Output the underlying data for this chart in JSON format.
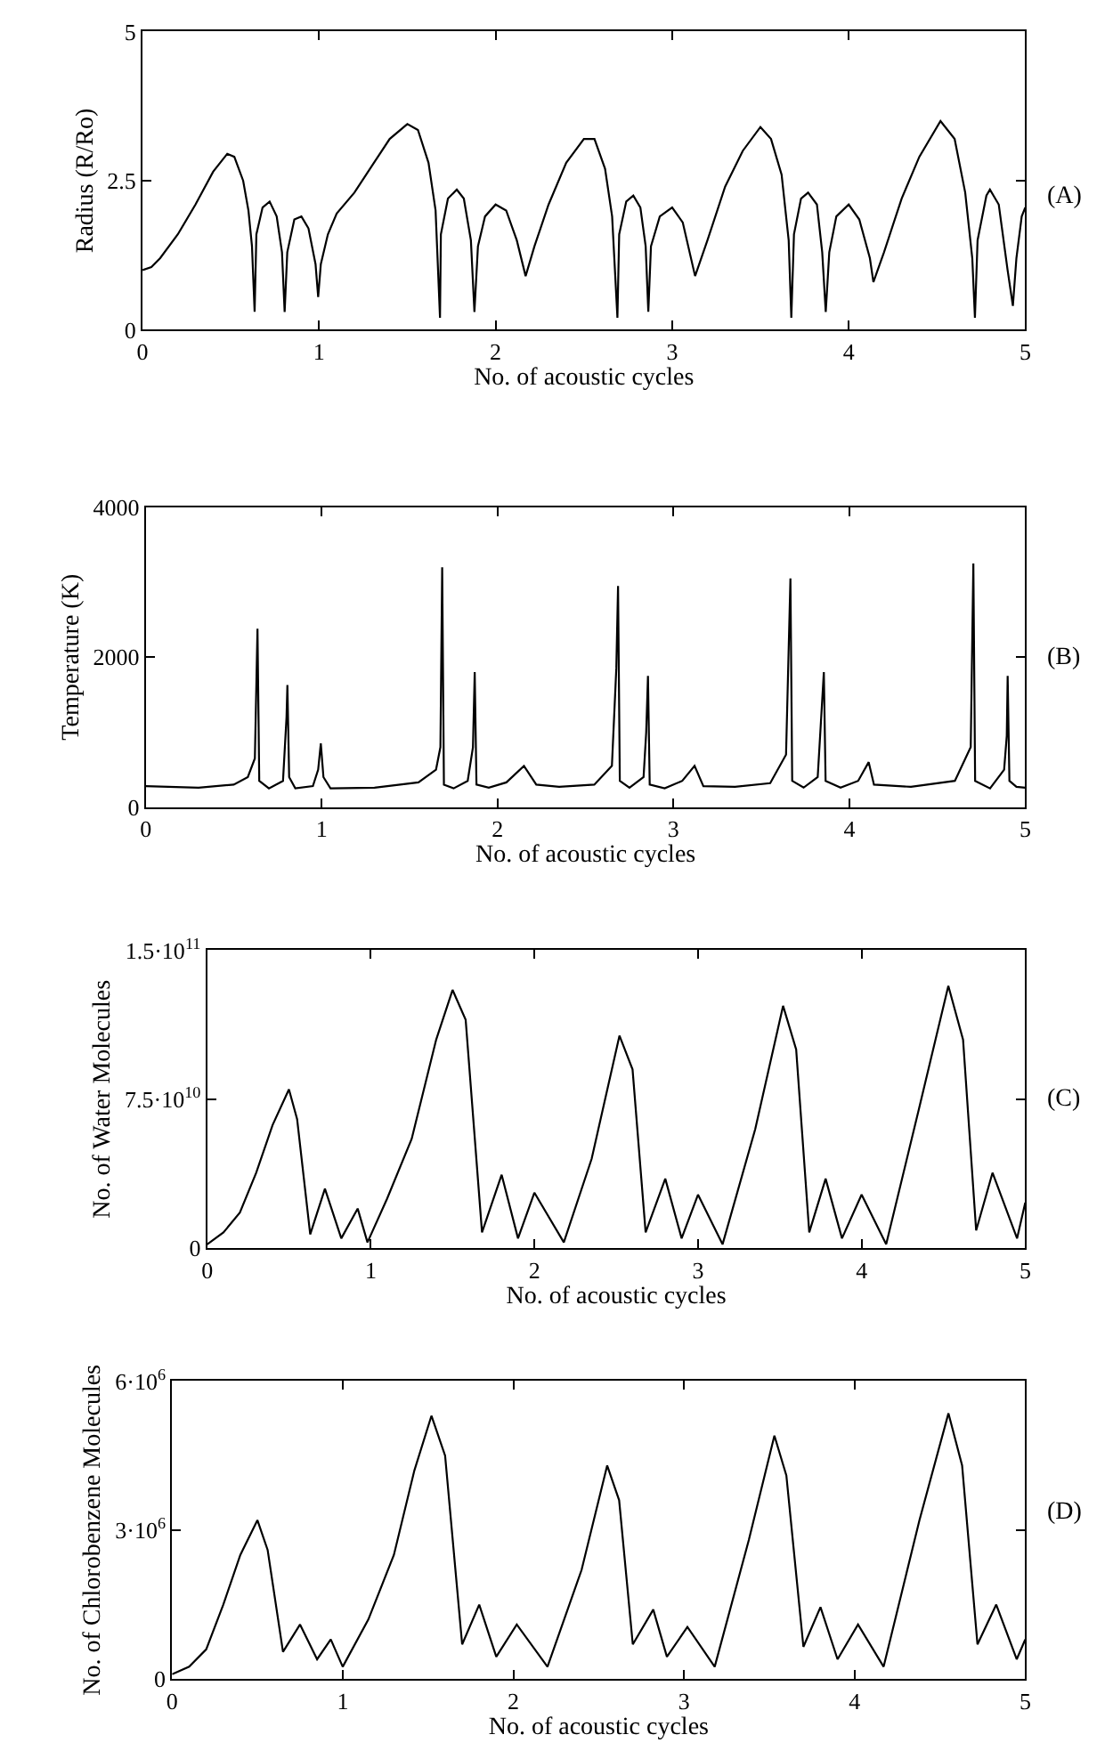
{
  "chart_data": [
    {
      "type": "line",
      "xlabel": "No. of acoustic cycles",
      "ylabel": "Radius (R/Ro)",
      "annotations": [
        "(A)"
      ],
      "xlim": [
        0,
        5
      ],
      "ylim": [
        0,
        5
      ],
      "xticks": [
        0,
        1,
        2,
        3,
        4,
        5
      ],
      "yticks": [
        0,
        2.5,
        5
      ],
      "x": [
        0,
        0.05,
        0.1,
        0.2,
        0.3,
        0.4,
        0.48,
        0.52,
        0.57,
        0.6,
        0.62,
        0.635,
        0.645,
        0.68,
        0.72,
        0.76,
        0.79,
        0.805,
        0.82,
        0.86,
        0.9,
        0.94,
        0.98,
        0.995,
        1.01,
        1.05,
        1.1,
        1.2,
        1.3,
        1.4,
        1.5,
        1.56,
        1.62,
        1.66,
        1.685,
        1.69,
        1.73,
        1.78,
        1.82,
        1.86,
        1.88,
        1.9,
        1.94,
        2.0,
        2.06,
        2.12,
        2.17,
        2.22,
        2.3,
        2.4,
        2.5,
        2.56,
        2.62,
        2.66,
        2.69,
        2.7,
        2.74,
        2.78,
        2.82,
        2.85,
        2.865,
        2.88,
        2.93,
        3.0,
        3.06,
        3.13,
        3.2,
        3.3,
        3.4,
        3.5,
        3.56,
        3.62,
        3.66,
        3.675,
        3.69,
        3.73,
        3.77,
        3.82,
        3.85,
        3.87,
        3.89,
        3.93,
        4.0,
        4.06,
        4.12,
        4.14,
        4.2,
        4.3,
        4.4,
        4.52,
        4.6,
        4.66,
        4.7,
        4.715,
        4.73,
        4.78,
        4.8,
        4.85,
        4.9,
        4.93,
        4.95,
        4.98,
        5.0
      ],
      "series": [
        {
          "color": "#000000",
          "values": [
            1.0,
            1.05,
            1.2,
            1.6,
            2.1,
            2.65,
            2.95,
            2.9,
            2.5,
            2.0,
            1.4,
            0.3,
            1.6,
            2.05,
            2.15,
            1.9,
            1.3,
            0.3,
            1.3,
            1.85,
            1.9,
            1.7,
            1.1,
            0.55,
            1.1,
            1.6,
            1.95,
            2.3,
            2.75,
            3.2,
            3.45,
            3.35,
            2.8,
            2.0,
            0.2,
            1.6,
            2.2,
            2.35,
            2.2,
            1.5,
            0.3,
            1.4,
            1.9,
            2.1,
            2.0,
            1.5,
            0.9,
            1.4,
            2.1,
            2.8,
            3.2,
            3.2,
            2.7,
            1.9,
            0.2,
            1.6,
            2.15,
            2.25,
            2.05,
            1.4,
            0.3,
            1.4,
            1.9,
            2.05,
            1.8,
            0.9,
            1.5,
            2.4,
            3.0,
            3.4,
            3.2,
            2.6,
            1.5,
            0.2,
            1.6,
            2.2,
            2.3,
            2.1,
            1.3,
            0.3,
            1.3,
            1.9,
            2.1,
            1.85,
            1.2,
            0.8,
            1.3,
            2.2,
            2.9,
            3.5,
            3.2,
            2.3,
            1.2,
            0.2,
            1.5,
            2.25,
            2.35,
            2.1,
            1.0,
            0.4,
            1.2,
            1.9,
            2.05
          ]
        }
      ]
    },
    {
      "type": "line",
      "xlabel": "No. of acoustic cycles",
      "ylabel": "Temperature (K)",
      "annotations": [
        "(B)"
      ],
      "xlim": [
        0,
        5
      ],
      "ylim": [
        0,
        4000
      ],
      "xticks": [
        0,
        1,
        2,
        3,
        4,
        5
      ],
      "yticks": [
        0,
        2000,
        4000
      ],
      "x": [
        0,
        0.3,
        0.5,
        0.58,
        0.62,
        0.635,
        0.645,
        0.7,
        0.78,
        0.8,
        0.805,
        0.815,
        0.85,
        0.95,
        0.98,
        0.995,
        1.01,
        1.05,
        1.3,
        1.55,
        1.65,
        1.675,
        1.685,
        1.695,
        1.75,
        1.83,
        1.86,
        1.87,
        1.88,
        1.95,
        2.05,
        2.15,
        2.22,
        2.35,
        2.55,
        2.65,
        2.675,
        2.685,
        2.695,
        2.75,
        2.83,
        2.845,
        2.855,
        2.865,
        2.95,
        3.05,
        3.12,
        3.17,
        3.35,
        3.55,
        3.64,
        3.665,
        3.675,
        3.74,
        3.82,
        3.855,
        3.865,
        3.95,
        4.05,
        4.11,
        4.14,
        4.35,
        4.6,
        4.69,
        4.705,
        4.715,
        4.8,
        4.88,
        4.895,
        4.9,
        4.91,
        4.95,
        5.0
      ],
      "series": [
        {
          "color": "#000000",
          "values": [
            280,
            260,
            300,
            400,
            650,
            2380,
            350,
            250,
            350,
            1200,
            1630,
            400,
            250,
            280,
            500,
            850,
            400,
            250,
            260,
            330,
            500,
            800,
            3200,
            300,
            250,
            350,
            800,
            1800,
            300,
            260,
            330,
            550,
            300,
            270,
            300,
            550,
            1850,
            2950,
            350,
            260,
            400,
            1000,
            1750,
            300,
            250,
            350,
            550,
            280,
            270,
            320,
            700,
            3050,
            350,
            260,
            400,
            1800,
            350,
            260,
            350,
            600,
            300,
            270,
            350,
            800,
            3250,
            350,
            250,
            500,
            950,
            1750,
            350,
            270,
            260
          ]
        }
      ]
    },
    {
      "type": "line",
      "xlabel": "No. of acoustic cycles",
      "ylabel": "No. of Water Molecules",
      "annotations": [
        "(C)"
      ],
      "xlim": [
        0,
        5
      ],
      "ylim": [
        0,
        150000000000.0
      ],
      "xticks": [
        0,
        1,
        2,
        3,
        4,
        5
      ],
      "yticks": [
        0,
        {
          "value": 75000000000.0,
          "label": "7.5·10$^{10}$"
        },
        {
          "value": 150000000000.0,
          "label": "1.5·10$^{11}$"
        }
      ],
      "x": [
        0,
        0.1,
        0.2,
        0.3,
        0.4,
        0.5,
        0.55,
        0.63,
        0.72,
        0.82,
        0.92,
        0.98,
        1.1,
        1.25,
        1.4,
        1.5,
        1.58,
        1.68,
        1.8,
        1.9,
        2.0,
        2.18,
        2.35,
        2.52,
        2.6,
        2.68,
        2.8,
        2.9,
        3.0,
        3.15,
        3.35,
        3.52,
        3.6,
        3.68,
        3.78,
        3.88,
        4.0,
        4.15,
        4.35,
        4.53,
        4.62,
        4.7,
        4.8,
        4.95,
        5.0
      ],
      "series": [
        {
          "color": "#000000",
          "values": [
            2000000000.0,
            8000000000.0,
            18000000000.0,
            38000000000.0,
            62000000000.0,
            80000000000.0,
            65000000000.0,
            7000000000.0,
            30000000000.0,
            5000000000.0,
            20000000000.0,
            3000000000.0,
            25000000000.0,
            55000000000.0,
            105000000000.0,
            130000000000.0,
            115000000000.0,
            8000000000.0,
            37000000000.0,
            5000000000.0,
            28000000000.0,
            3000000000.0,
            45000000000.0,
            107000000000.0,
            90000000000.0,
            8000000000.0,
            35000000000.0,
            5000000000.0,
            27000000000.0,
            2000000000.0,
            60000000000.0,
            122000000000.0,
            100000000000.0,
            8000000000.0,
            35000000000.0,
            5000000000.0,
            27000000000.0,
            2000000000.0,
            70000000000.0,
            132000000000.0,
            105000000000.0,
            9000000000.0,
            38000000000.0,
            5000000000.0,
            23000000000.0
          ]
        }
      ]
    },
    {
      "type": "line",
      "xlabel": "No. of acoustic cycles",
      "ylabel": "No. of Chlorobenzene Molecules",
      "annotations": [
        "(D)"
      ],
      "xlim": [
        0,
        5
      ],
      "ylim": [
        0,
        6000000.0
      ],
      "xticks": [
        0,
        1,
        2,
        3,
        4,
        5
      ],
      "yticks": [
        0,
        {
          "value": 3000000.0,
          "label": "3·10$^{6}$"
        },
        {
          "value": 6000000.0,
          "label": "6·10$^{6}$"
        }
      ],
      "x": [
        0,
        0.1,
        0.2,
        0.3,
        0.4,
        0.5,
        0.56,
        0.65,
        0.75,
        0.85,
        0.93,
        1.0,
        1.15,
        1.3,
        1.42,
        1.52,
        1.6,
        1.7,
        1.8,
        1.9,
        2.02,
        2.2,
        2.4,
        2.55,
        2.62,
        2.7,
        2.82,
        2.9,
        3.02,
        3.18,
        3.38,
        3.53,
        3.6,
        3.7,
        3.8,
        3.9,
        4.02,
        4.17,
        4.38,
        4.55,
        4.63,
        4.72,
        4.83,
        4.95,
        5.0
      ],
      "series": [
        {
          "color": "#000000",
          "values": [
            100000.0,
            250000.0,
            600000.0,
            1500000.0,
            2500000.0,
            3200000.0,
            2600000.0,
            550000.0,
            1100000.0,
            400000.0,
            800000.0,
            250000.0,
            1200000.0,
            2500000.0,
            4200000.0,
            5300000.0,
            4500000.0,
            700000.0,
            1500000.0,
            450000.0,
            1100000.0,
            250000.0,
            2200000.0,
            4300000.0,
            3600000.0,
            700000.0,
            1400000.0,
            450000.0,
            1050000.0,
            250000.0,
            2800000.0,
            4900000.0,
            4100000.0,
            650000.0,
            1450000.0,
            400000.0,
            1100000.0,
            250000.0,
            3200000.0,
            5350000.0,
            4300000.0,
            700000.0,
            1500000.0,
            400000.0,
            800000.0
          ]
        }
      ]
    }
  ]
}
